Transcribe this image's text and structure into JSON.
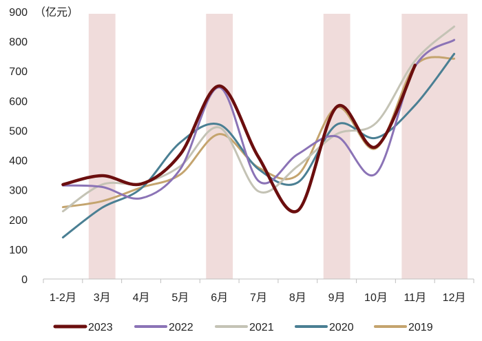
{
  "chart_data": {
    "type": "line",
    "unit_label": "（亿元）",
    "categories": [
      "1-2月",
      "3月",
      "4月",
      "5月",
      "6月",
      "7月",
      "8月",
      "9月",
      "10月",
      "11月",
      "12月"
    ],
    "ylim": [
      0,
      900
    ],
    "yticks": [
      0,
      100,
      200,
      300,
      400,
      500,
      600,
      700,
      800,
      900
    ],
    "highlight_bands": [
      "3月",
      "6月",
      "9月",
      [
        "11月",
        "12月"
      ]
    ],
    "band_color": "#f0dcdb",
    "series": [
      {
        "name": "2023",
        "color": "#6b0e0e",
        "values": [
          318,
          348,
          320,
          420,
          650,
          410,
          230,
          580,
          445,
          720,
          null
        ]
      },
      {
        "name": "2022",
        "color": "#8b73b6",
        "values": [
          315,
          310,
          272,
          370,
          645,
          330,
          420,
          480,
          355,
          715,
          805
        ]
      },
      {
        "name": "2021",
        "color": "#c4c3b5",
        "values": [
          228,
          318,
          322,
          380,
          510,
          295,
          380,
          488,
          525,
          735,
          850
        ]
      },
      {
        "name": "2020",
        "color": "#4a7f93",
        "values": [
          140,
          240,
          305,
          460,
          520,
          370,
          325,
          520,
          475,
          585,
          758
        ]
      },
      {
        "name": "2019",
        "color": "#c4a46e",
        "values": [
          242,
          262,
          308,
          352,
          488,
          375,
          350,
          578,
          440,
          718,
          742
        ]
      }
    ],
    "legend_position": "bottom",
    "grid": false
  }
}
